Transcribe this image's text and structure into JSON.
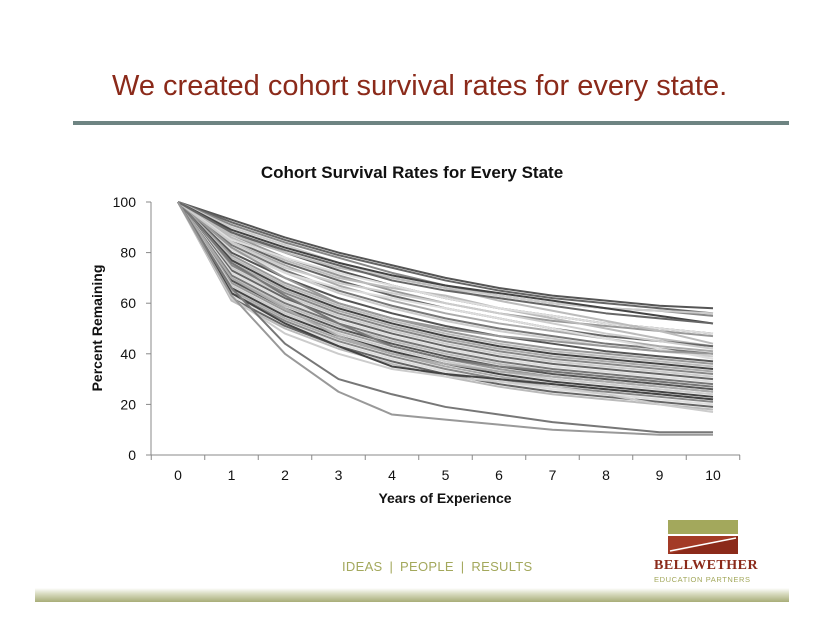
{
  "slide": {
    "title": "We created cohort survival rates for every state.",
    "tagline": [
      "IDEAS",
      "PEOPLE",
      "RESULTS"
    ],
    "tagline_separator": "|",
    "logo": {
      "name": "BELLWETHER",
      "subtitle": "EDUCATION PARTNERS"
    }
  },
  "colors": {
    "title": "#8b2a1a",
    "rule": "#6e8482",
    "tagline": "#a3a85c",
    "logo_red": "#8b2a1a",
    "logo_olive": "#a3a85c"
  },
  "chart_data": {
    "type": "line",
    "title": "Cohort Survival Rates for Every State",
    "xlabel": "Years of Experience",
    "ylabel": "Percent Remaining",
    "x": [
      0,
      1,
      2,
      3,
      4,
      5,
      6,
      7,
      8,
      9,
      10
    ],
    "xticks": [
      "0",
      "1",
      "2",
      "3",
      "4",
      "5",
      "6",
      "7",
      "8",
      "9",
      "10"
    ],
    "yticks": [
      "0",
      "20",
      "40",
      "60",
      "80",
      "100"
    ],
    "ylim": [
      0,
      100
    ],
    "grid": false,
    "legend": "none",
    "series": [
      {
        "values": [
          100,
          93,
          86,
          80,
          75,
          70,
          66,
          63,
          61,
          59,
          58
        ],
        "color": "#555555"
      },
      {
        "values": [
          100,
          92,
          85,
          79,
          74,
          69,
          65,
          62,
          60,
          58,
          56
        ],
        "color": "#666666"
      },
      {
        "values": [
          100,
          91,
          84,
          78,
          72,
          67,
          63,
          60,
          58,
          57,
          55
        ],
        "color": "#888888"
      },
      {
        "values": [
          100,
          90,
          83,
          76,
          70,
          66,
          63,
          60,
          58,
          57,
          56
        ],
        "color": "#cccccc"
      },
      {
        "values": [
          100,
          89,
          82,
          76,
          71,
          67,
          64,
          61,
          58,
          55,
          52
        ],
        "color": "#444444"
      },
      {
        "values": [
          100,
          88,
          80,
          73,
          67,
          62,
          58,
          55,
          52,
          50,
          48
        ],
        "color": "#555555"
      },
      {
        "values": [
          100,
          87,
          78,
          71,
          65,
          60,
          56,
          53,
          51,
          49,
          47
        ],
        "color": "#999999"
      },
      {
        "values": [
          100,
          86,
          77,
          70,
          66,
          63,
          58,
          54,
          50,
          46,
          43
        ],
        "color": "#bbbbbb"
      },
      {
        "values": [
          100,
          85,
          76,
          69,
          63,
          58,
          54,
          50,
          47,
          45,
          43
        ],
        "color": "#666666"
      },
      {
        "values": [
          100,
          84,
          75,
          67,
          61,
          56,
          52,
          49,
          46,
          43,
          41
        ],
        "color": "#aaaaaa"
      },
      {
        "values": [
          100,
          83,
          73,
          65,
          59,
          54,
          50,
          47,
          44,
          42,
          40
        ],
        "color": "#777777"
      },
      {
        "values": [
          100,
          82,
          72,
          64,
          58,
          53,
          49,
          46,
          43,
          41,
          39
        ],
        "color": "#cccccc"
      },
      {
        "values": [
          100,
          81,
          72,
          66,
          62,
          58,
          54,
          50,
          46,
          42,
          38
        ],
        "color": "#dddddd"
      },
      {
        "values": [
          100,
          80,
          70,
          62,
          56,
          51,
          47,
          44,
          41,
          39,
          37
        ],
        "color": "#555555"
      },
      {
        "values": [
          100,
          79,
          68,
          60,
          54,
          49,
          45,
          42,
          40,
          38,
          36
        ],
        "color": "#999999"
      },
      {
        "values": [
          100,
          78,
          67,
          59,
          53,
          48,
          44,
          41,
          39,
          37,
          35
        ],
        "color": "#bbbbbb"
      },
      {
        "values": [
          100,
          77,
          66,
          58,
          52,
          47,
          43,
          40,
          38,
          36,
          34
        ],
        "color": "#444444"
      },
      {
        "values": [
          100,
          76,
          65,
          57,
          51,
          46,
          42,
          39,
          37,
          35,
          33
        ],
        "color": "#aaaaaa"
      },
      {
        "values": [
          100,
          75,
          64,
          56,
          50,
          45,
          41,
          38,
          36,
          34,
          32
        ],
        "color": "#888888"
      },
      {
        "values": [
          100,
          74,
          63,
          55,
          49,
          44,
          40,
          37,
          35,
          33,
          31
        ],
        "color": "#cccccc"
      },
      {
        "values": [
          100,
          73,
          62,
          54,
          48,
          43,
          39,
          36,
          34,
          32,
          30
        ],
        "color": "#666666"
      },
      {
        "values": [
          100,
          72,
          61,
          53,
          47,
          42,
          38,
          35,
          33,
          31,
          29
        ],
        "color": "#dddddd"
      },
      {
        "values": [
          100,
          71,
          60,
          52,
          46,
          41,
          37,
          34,
          32,
          30,
          28
        ],
        "color": "#777777"
      },
      {
        "values": [
          100,
          70,
          59,
          51,
          45,
          40,
          36,
          33,
          31,
          29,
          27
        ],
        "color": "#bbbbbb"
      },
      {
        "values": [
          100,
          69,
          58,
          50,
          44,
          39,
          35,
          32,
          30,
          28,
          26
        ],
        "color": "#555555"
      },
      {
        "values": [
          100,
          68,
          57,
          49,
          43,
          38,
          34,
          31,
          29,
          27,
          25
        ],
        "color": "#999999"
      },
      {
        "values": [
          100,
          67,
          56,
          48,
          42,
          37,
          33,
          30,
          28,
          26,
          24
        ],
        "color": "#cccccc"
      },
      {
        "values": [
          100,
          66,
          55,
          47,
          41,
          36,
          32,
          29,
          27,
          25,
          23
        ],
        "color": "#444444"
      },
      {
        "values": [
          100,
          65,
          54,
          46,
          40,
          35,
          31,
          28,
          26,
          24,
          22
        ],
        "color": "#aaaaaa"
      },
      {
        "values": [
          100,
          64,
          53,
          45,
          39,
          34,
          30,
          27,
          25,
          23,
          21
        ],
        "color": "#888888"
      },
      {
        "values": [
          100,
          63,
          52,
          44,
          38,
          33,
          29,
          26,
          24,
          22,
          20
        ],
        "color": "#dddddd"
      },
      {
        "values": [
          100,
          62,
          51,
          43,
          37,
          32,
          28,
          25,
          23,
          21,
          19
        ],
        "color": "#666666"
      },
      {
        "values": [
          100,
          61,
          50,
          42,
          36,
          31,
          27,
          24,
          22,
          20,
          18
        ],
        "color": "#bbbbbb"
      },
      {
        "values": [
          100,
          62,
          48,
          40,
          34,
          31,
          29,
          27,
          24,
          20,
          17
        ],
        "color": "#cccccc"
      },
      {
        "values": [
          100,
          64,
          52,
          43,
          35,
          32,
          30,
          28,
          26,
          24,
          22
        ],
        "color": "#444444"
      },
      {
        "values": [
          100,
          70,
          58,
          47,
          40,
          36,
          33,
          31,
          29,
          27,
          25
        ],
        "color": "#aaaaaa"
      },
      {
        "values": [
          100,
          76,
          63,
          52,
          43,
          38,
          35,
          33,
          31,
          29,
          27
        ],
        "color": "#777777"
      },
      {
        "values": [
          100,
          82,
          70,
          60,
          54,
          50,
          47,
          45,
          43,
          41,
          40
        ],
        "color": "#999999"
      },
      {
        "values": [
          100,
          85,
          78,
          72,
          67,
          62,
          58,
          55,
          52,
          50,
          48
        ],
        "color": "#dddddd"
      },
      {
        "values": [
          100,
          84,
          74,
          68,
          64,
          60,
          56,
          52,
          48,
          45,
          42
        ],
        "color": "#cccccc"
      },
      {
        "values": [
          100,
          87,
          80,
          74,
          70,
          66,
          61,
          57,
          53,
          49,
          44
        ],
        "color": "#bbbbbb"
      },
      {
        "values": [
          100,
          88,
          81,
          75,
          69,
          65,
          62,
          59,
          56,
          54,
          52
        ],
        "color": "#666666"
      },
      {
        "values": [
          100,
          66,
          44,
          30,
          24,
          19,
          16,
          13,
          11,
          9,
          9
        ],
        "color": "#777777"
      },
      {
        "values": [
          100,
          63,
          40,
          25,
          16,
          14,
          12,
          10,
          9,
          8,
          8
        ],
        "color": "#999999"
      }
    ]
  }
}
